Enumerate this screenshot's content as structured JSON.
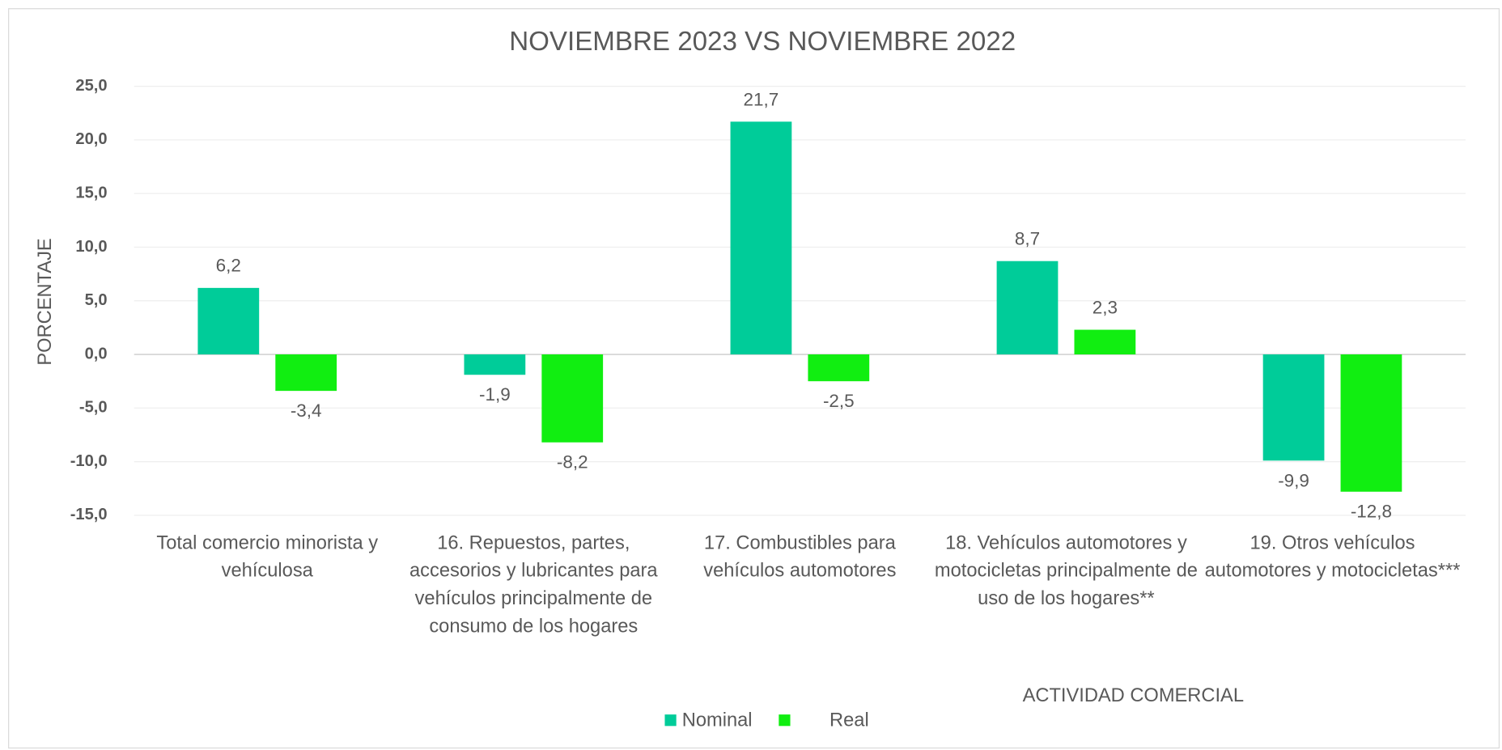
{
  "chart_data": {
    "type": "bar",
    "title": "NOVIEMBRE 2023 VS NOVIEMBRE 2022",
    "y_label": "PORCENTAJE",
    "x_label": "ACTIVIDAD COMERCIAL",
    "categories": [
      "Total comercio minorista y vehículosa",
      "16. Repuestos, partes, accesorios y lubricantes para vehículos principalmente de consumo de los hogares",
      "17. Combustibles para vehículos automotores",
      "18. Vehículos automotores y motocicletas principalmente de uso de los hogares**",
      "19. Otros vehículos automotores y motocicletas***"
    ],
    "series": [
      {
        "name": "Nominal",
        "color": "#00cc99",
        "values": [
          6.2,
          -1.9,
          21.7,
          8.7,
          -9.9
        ],
        "value_labels": [
          "6,2",
          "-1,9",
          "21,7",
          "8,7",
          "-9,9"
        ]
      },
      {
        "name": "Real",
        "color": "#11ee11",
        "values": [
          -3.4,
          -8.2,
          -2.5,
          2.3,
          -12.8
        ],
        "value_labels": [
          "-3,4",
          "-8,2",
          "-2,5",
          "2,3",
          "-12,8"
        ]
      }
    ],
    "ylim": [
      -15,
      25
    ],
    "yticks": [
      {
        "value": -15,
        "label": "-15,0"
      },
      {
        "value": -10,
        "label": "-10,0"
      },
      {
        "value": -5,
        "label": "-5,0"
      },
      {
        "value": 0,
        "label": "0,0"
      },
      {
        "value": 5,
        "label": "5,0"
      },
      {
        "value": 10,
        "label": "10,0"
      },
      {
        "value": 15,
        "label": "15,0"
      },
      {
        "value": 20,
        "label": "20,0"
      },
      {
        "value": 25,
        "label": "25,0"
      }
    ],
    "grid": true,
    "legend": "bottom"
  }
}
